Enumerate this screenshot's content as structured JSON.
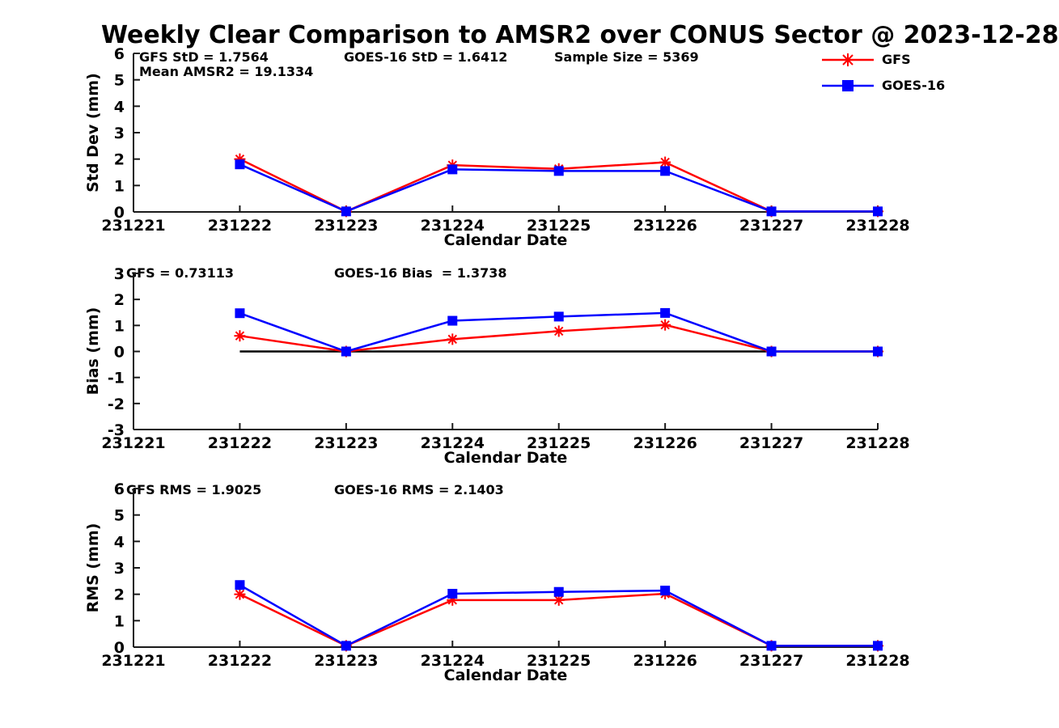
{
  "title": "Weekly Clear Comparison to AMSR2 over CONUS Sector @ 2023-12-28",
  "colors": {
    "gfs": "#ff0000",
    "goes16": "#0000ff",
    "axis": "#1a1a1a",
    "zero_line": "#000000",
    "text": "#000000",
    "background": "#ffffff"
  },
  "legend": {
    "position": "top-right",
    "items": [
      {
        "label": "GFS",
        "color": "#ff0000",
        "marker": "asterisk"
      },
      {
        "label": "GOES-16",
        "color": "#0000ff",
        "marker": "square"
      }
    ]
  },
  "chart_data": [
    {
      "type": "line",
      "ylabel": "Std Dev (mm)",
      "xlabel": "Calendar Date",
      "xtick_labels": [
        "231221",
        "231222",
        "231223",
        "231224",
        "231225",
        "231226",
        "231227",
        "231228"
      ],
      "x": [
        231222,
        231223,
        231224,
        231225,
        231226,
        231227,
        231228
      ],
      "ylim": [
        0,
        6
      ],
      "yticks": [
        0,
        1,
        2,
        3,
        4,
        5,
        6
      ],
      "grid": false,
      "zero_line": false,
      "series": [
        {
          "name": "GFS",
          "color": "#ff0000",
          "marker": "asterisk",
          "values": [
            2.0,
            0.02,
            1.77,
            1.63,
            1.88,
            0.02,
            0.02
          ]
        },
        {
          "name": "GOES-16",
          "color": "#0000ff",
          "marker": "square",
          "values": [
            1.8,
            0.02,
            1.61,
            1.55,
            1.55,
            0.02,
            0.02
          ]
        }
      ],
      "annotations": [
        {
          "text": "GFS StD = 1.7564"
        },
        {
          "text": "GOES-16 StD = 1.6412"
        },
        {
          "text": "Sample Size = 5369"
        },
        {
          "text": "Mean AMSR2 = 19.1334"
        }
      ]
    },
    {
      "type": "line",
      "ylabel": "Bias (mm)",
      "xlabel": "Calendar Date",
      "xtick_labels": [
        "231221",
        "231222",
        "231223",
        "231224",
        "231225",
        "231226",
        "231227",
        "231228"
      ],
      "x": [
        231222,
        231223,
        231224,
        231225,
        231226,
        231227,
        231228
      ],
      "ylim": [
        -3,
        3
      ],
      "yticks": [
        -3,
        -2,
        -1,
        0,
        1,
        2,
        3
      ],
      "grid": false,
      "zero_line": true,
      "series": [
        {
          "name": "GFS",
          "color": "#ff0000",
          "marker": "asterisk",
          "values": [
            0.6,
            0.0,
            0.47,
            0.78,
            1.02,
            0.0,
            0.0
          ]
        },
        {
          "name": "GOES-16",
          "color": "#0000ff",
          "marker": "square",
          "values": [
            1.47,
            0.0,
            1.18,
            1.34,
            1.48,
            0.0,
            0.0
          ]
        }
      ],
      "annotations": [
        {
          "text": "GFS = 0.73113"
        },
        {
          "text": "GOES-16 Bias  = 1.3738"
        }
      ]
    },
    {
      "type": "line",
      "ylabel": "RMS (mm)",
      "xlabel": "Calendar Date",
      "xtick_labels": [
        "231221",
        "231222",
        "231223",
        "231224",
        "231225",
        "231226",
        "231227",
        "231228"
      ],
      "x": [
        231222,
        231223,
        231224,
        231225,
        231226,
        231227,
        231228
      ],
      "ylim": [
        0,
        6
      ],
      "yticks": [
        0,
        1,
        2,
        3,
        4,
        5,
        6
      ],
      "grid": false,
      "zero_line": false,
      "series": [
        {
          "name": "GFS",
          "color": "#ff0000",
          "marker": "asterisk",
          "values": [
            2.0,
            0.05,
            1.78,
            1.78,
            2.02,
            0.05,
            0.05
          ]
        },
        {
          "name": "GOES-16",
          "color": "#0000ff",
          "marker": "square",
          "values": [
            2.35,
            0.05,
            2.02,
            2.09,
            2.14,
            0.05,
            0.05
          ]
        }
      ],
      "annotations": [
        {
          "text": "GFS RMS = 1.9025"
        },
        {
          "text": "GOES-16 RMS = 2.1403"
        }
      ]
    }
  ]
}
